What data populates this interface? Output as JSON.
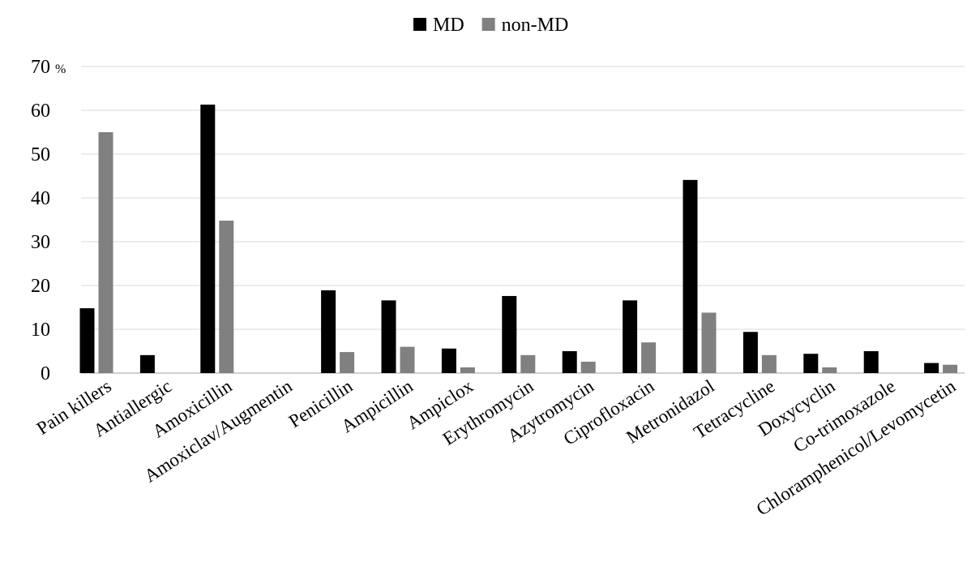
{
  "chart_data": {
    "type": "bar",
    "title": "",
    "xlabel": "",
    "ylabel": "",
    "y_unit": "%",
    "ylim": [
      0,
      70
    ],
    "yticks": [
      0,
      10,
      20,
      30,
      40,
      50,
      60,
      70
    ],
    "grid": true,
    "legend_position": "top-center",
    "categories": [
      "Pain killers",
      "Antiallergic",
      "Amoxicillin",
      "Amoxiclav/Augmentin",
      "Penicillin",
      "Ampicillin",
      "Ampiclox",
      "Erythromycin",
      "Azytromycin",
      "Ciprofloxacin",
      "Metronidazol",
      "Tetracycline",
      "Doxycyclin",
      "Co-trimoxazole",
      "Chloramphenicol/Levomycetin"
    ],
    "series": [
      {
        "name": "MD",
        "color": "#000000",
        "values": [
          14.8,
          4.1,
          61.3,
          0,
          18.9,
          16.6,
          5.6,
          17.6,
          5.0,
          16.6,
          44.1,
          9.4,
          4.4,
          5.0,
          2.3
        ]
      },
      {
        "name": "non-MD",
        "color": "#808080",
        "values": [
          55.0,
          0,
          34.8,
          0,
          4.8,
          6.0,
          1.3,
          4.1,
          2.6,
          7.0,
          13.8,
          4.1,
          1.3,
          0,
          1.9
        ]
      }
    ]
  }
}
